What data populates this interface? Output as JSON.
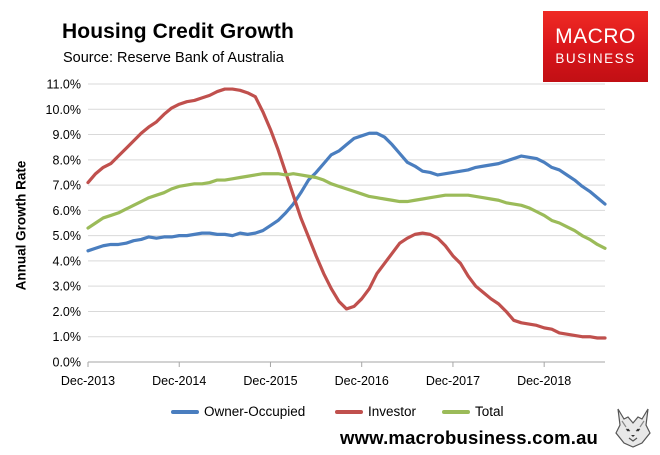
{
  "header": {
    "title": "Housing Credit Growth",
    "subtitle": "Source: Reserve Bank of Australia"
  },
  "logo": {
    "line1": "MACRO",
    "line2": "BUSINESS"
  },
  "footer": {
    "url": "www.macrobusiness.com.au"
  },
  "colors": {
    "owner_occupied": "#4a7ebf",
    "investor": "#c0504d",
    "total": "#9bbb59",
    "grid": "#d9d9d9",
    "axis": "#a6a6a6"
  },
  "chart_data": {
    "type": "line",
    "title": "Housing Credit Growth",
    "ylabel": "Annual Growth Rate",
    "xlabel": "",
    "ylim": [
      0.0,
      11.0
    ],
    "yticks": [
      "0.0%",
      "1.0%",
      "2.0%",
      "3.0%",
      "4.0%",
      "5.0%",
      "6.0%",
      "7.0%",
      "8.0%",
      "9.0%",
      "10.0%",
      "11.0%"
    ],
    "xticks": [
      "Dec-2013",
      "Dec-2014",
      "Dec-2015",
      "Dec-2016",
      "Dec-2017",
      "Dec-2018"
    ],
    "x_start": "Dec-2013",
    "x_end": "Feb-2019",
    "grid": true,
    "legend_position": "bottom",
    "series": [
      {
        "name": "Owner-Occupied",
        "color": "#4a7ebf",
        "values": [
          4.4,
          4.5,
          4.6,
          4.65,
          4.65,
          4.7,
          4.8,
          4.85,
          4.95,
          4.9,
          4.95,
          4.95,
          5.0,
          5.0,
          5.05,
          5.1,
          5.1,
          5.05,
          5.05,
          5.0,
          5.1,
          5.05,
          5.1,
          5.2,
          5.4,
          5.6,
          5.9,
          6.25,
          6.7,
          7.2,
          7.5,
          7.85,
          8.2,
          8.35,
          8.6,
          8.85,
          8.95,
          9.05,
          9.05,
          8.9,
          8.6,
          8.25,
          7.9,
          7.75,
          7.55,
          7.5,
          7.4,
          7.45,
          7.5,
          7.55,
          7.6,
          7.7,
          7.75,
          7.8,
          7.85,
          7.95,
          8.05,
          8.15,
          8.1,
          8.05,
          7.9,
          7.7,
          7.6,
          7.4,
          7.2,
          6.95,
          6.75,
          6.5,
          6.25
        ]
      },
      {
        "name": "Investor",
        "color": "#c0504d",
        "values": [
          7.1,
          7.45,
          7.7,
          7.85,
          8.15,
          8.45,
          8.75,
          9.05,
          9.3,
          9.5,
          9.8,
          10.05,
          10.2,
          10.3,
          10.35,
          10.45,
          10.55,
          10.7,
          10.8,
          10.8,
          10.75,
          10.65,
          10.5,
          9.9,
          9.2,
          8.4,
          7.5,
          6.6,
          5.7,
          4.95,
          4.2,
          3.5,
          2.9,
          2.4,
          2.1,
          2.2,
          2.5,
          2.9,
          3.5,
          3.9,
          4.3,
          4.7,
          4.9,
          5.05,
          5.1,
          5.05,
          4.9,
          4.6,
          4.2,
          3.9,
          3.4,
          3.0,
          2.75,
          2.5,
          2.3,
          2.0,
          1.65,
          1.55,
          1.5,
          1.45,
          1.35,
          1.3,
          1.15,
          1.1,
          1.05,
          1.0,
          1.0,
          0.95,
          0.95
        ]
      },
      {
        "name": "Total",
        "color": "#9bbb59",
        "values": [
          5.3,
          5.5,
          5.7,
          5.8,
          5.9,
          6.05,
          6.2,
          6.35,
          6.5,
          6.6,
          6.7,
          6.85,
          6.95,
          7.0,
          7.05,
          7.05,
          7.1,
          7.2,
          7.2,
          7.25,
          7.3,
          7.35,
          7.4,
          7.45,
          7.45,
          7.45,
          7.4,
          7.45,
          7.4,
          7.35,
          7.3,
          7.2,
          7.05,
          6.95,
          6.85,
          6.75,
          6.65,
          6.55,
          6.5,
          6.45,
          6.4,
          6.35,
          6.35,
          6.4,
          6.45,
          6.5,
          6.55,
          6.6,
          6.6,
          6.6,
          6.6,
          6.55,
          6.5,
          6.45,
          6.4,
          6.3,
          6.25,
          6.2,
          6.1,
          5.95,
          5.8,
          5.6,
          5.5,
          5.35,
          5.2,
          5.0,
          4.85,
          4.65,
          4.5
        ]
      }
    ]
  }
}
